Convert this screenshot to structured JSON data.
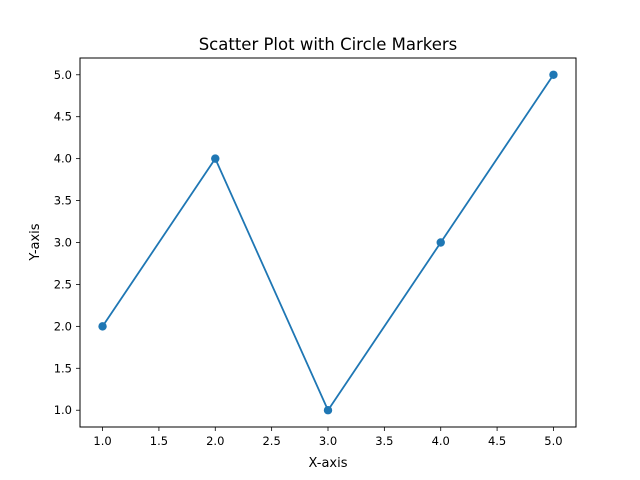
{
  "chart_data": {
    "type": "line",
    "title": "Scatter Plot with Circle Markers",
    "xlabel": "X-axis",
    "ylabel": "Y-axis",
    "x": [
      1,
      2,
      3,
      4,
      5
    ],
    "y": [
      2,
      4,
      1,
      3,
      5
    ],
    "markers": "circle",
    "xlim": [
      0.8,
      5.2
    ],
    "ylim": [
      0.8,
      5.2
    ],
    "x_ticks": [
      "1.0",
      "1.5",
      "2.0",
      "2.5",
      "3.0",
      "3.5",
      "4.0",
      "4.5",
      "5.0"
    ],
    "y_ticks": [
      "1.0",
      "1.5",
      "2.0",
      "2.5",
      "3.0",
      "3.5",
      "4.0",
      "4.5",
      "5.0"
    ],
    "grid": false,
    "legend": "none",
    "line_color": "#1f77b4",
    "marker_color": "#1f77b4"
  }
}
